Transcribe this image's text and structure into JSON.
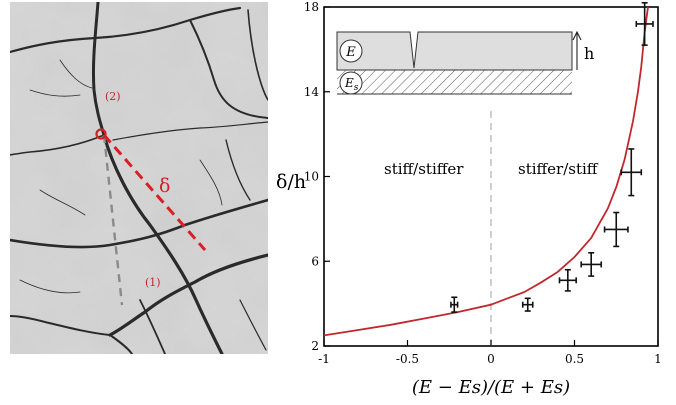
{
  "photo": {
    "label_crack_2": "(2)",
    "label_crack_1": "(1)",
    "label_delta": "δ"
  },
  "inset": {
    "film_label": "E",
    "substrate_label": "E",
    "substrate_subscript": "s",
    "thickness_label": "h"
  },
  "regions": {
    "left": "stiff/stiffer",
    "right": "stiffer/stiff"
  },
  "chart_data": {
    "type": "scatter",
    "xlabel": "(E − Es)/(E + Es)",
    "ylabel": "δ/h",
    "xlim": [
      -1,
      1
    ],
    "ylim": [
      2,
      18
    ],
    "xticks": [
      -1,
      -0.5,
      0,
      0.5,
      1
    ],
    "xtick_labels": [
      "-1",
      "-0.5",
      "0",
      "0.5",
      "1"
    ],
    "yticks": [
      2,
      6,
      10,
      14,
      18
    ],
    "ytick_labels": [
      "2",
      "6",
      "10",
      "14",
      "18"
    ],
    "divider_x": 0,
    "points": [
      {
        "x": -0.22,
        "y": 3.95,
        "xerr": 0.02,
        "yerr": 0.35
      },
      {
        "x": 0.22,
        "y": 3.95,
        "xerr": 0.03,
        "yerr": 0.3
      },
      {
        "x": 0.46,
        "y": 5.1,
        "xerr": 0.05,
        "yerr": 0.5
      },
      {
        "x": 0.6,
        "y": 5.85,
        "xerr": 0.06,
        "yerr": 0.55
      },
      {
        "x": 0.75,
        "y": 7.5,
        "xerr": 0.07,
        "yerr": 0.8
      },
      {
        "x": 0.84,
        "y": 10.2,
        "xerr": 0.06,
        "yerr": 1.1
      },
      {
        "x": 0.92,
        "y": 17.2,
        "xerr": 0.05,
        "yerr": 1.0
      }
    ],
    "curve": {
      "x": [
        -1,
        -0.8,
        -0.6,
        -0.4,
        -0.2,
        0,
        0.2,
        0.3,
        0.4,
        0.5,
        0.6,
        0.7,
        0.75,
        0.8,
        0.85,
        0.88,
        0.9,
        0.92,
        0.94
      ],
      "y": [
        2.5,
        2.75,
        3.0,
        3.3,
        3.6,
        3.95,
        4.55,
        5.0,
        5.5,
        6.2,
        7.1,
        8.5,
        9.5,
        10.8,
        12.6,
        14.0,
        15.2,
        16.8,
        18.0
      ]
    },
    "colors": {
      "curve": "#c0282d",
      "points": "#111111",
      "divider": "#bbbbbb"
    }
  }
}
